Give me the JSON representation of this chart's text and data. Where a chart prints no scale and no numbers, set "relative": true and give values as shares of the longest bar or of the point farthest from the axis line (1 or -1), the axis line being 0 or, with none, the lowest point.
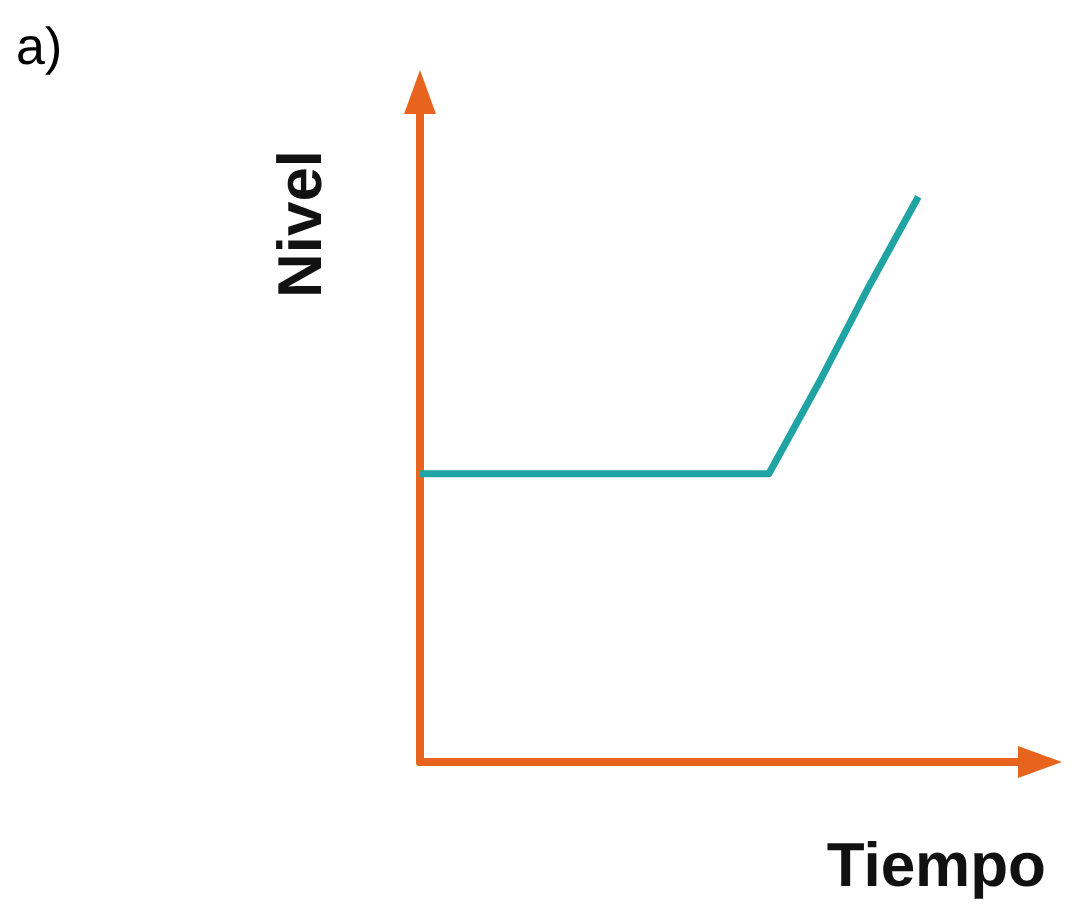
{
  "chart_data": {
    "type": "line",
    "relative": true,
    "xlabel": "Tiempo",
    "ylabel": "Nivel",
    "annotations": [
      "a)"
    ],
    "categories": [
      null,
      null,
      null,
      null,
      null,
      null,
      null,
      null,
      null,
      null,
      null,
      null,
      null
    ],
    "series": [
      {
        "color": "#1fa3a3",
        "values": [
          0.51,
          0.51,
          0.51,
          0.51,
          0.51,
          0.51,
          0.51,
          0.51,
          0.67,
          0.84,
          1,
          null,
          null
        ]
      }
    ],
    "marker": "none",
    "line_style": "solid",
    "grid": false
  }
}
